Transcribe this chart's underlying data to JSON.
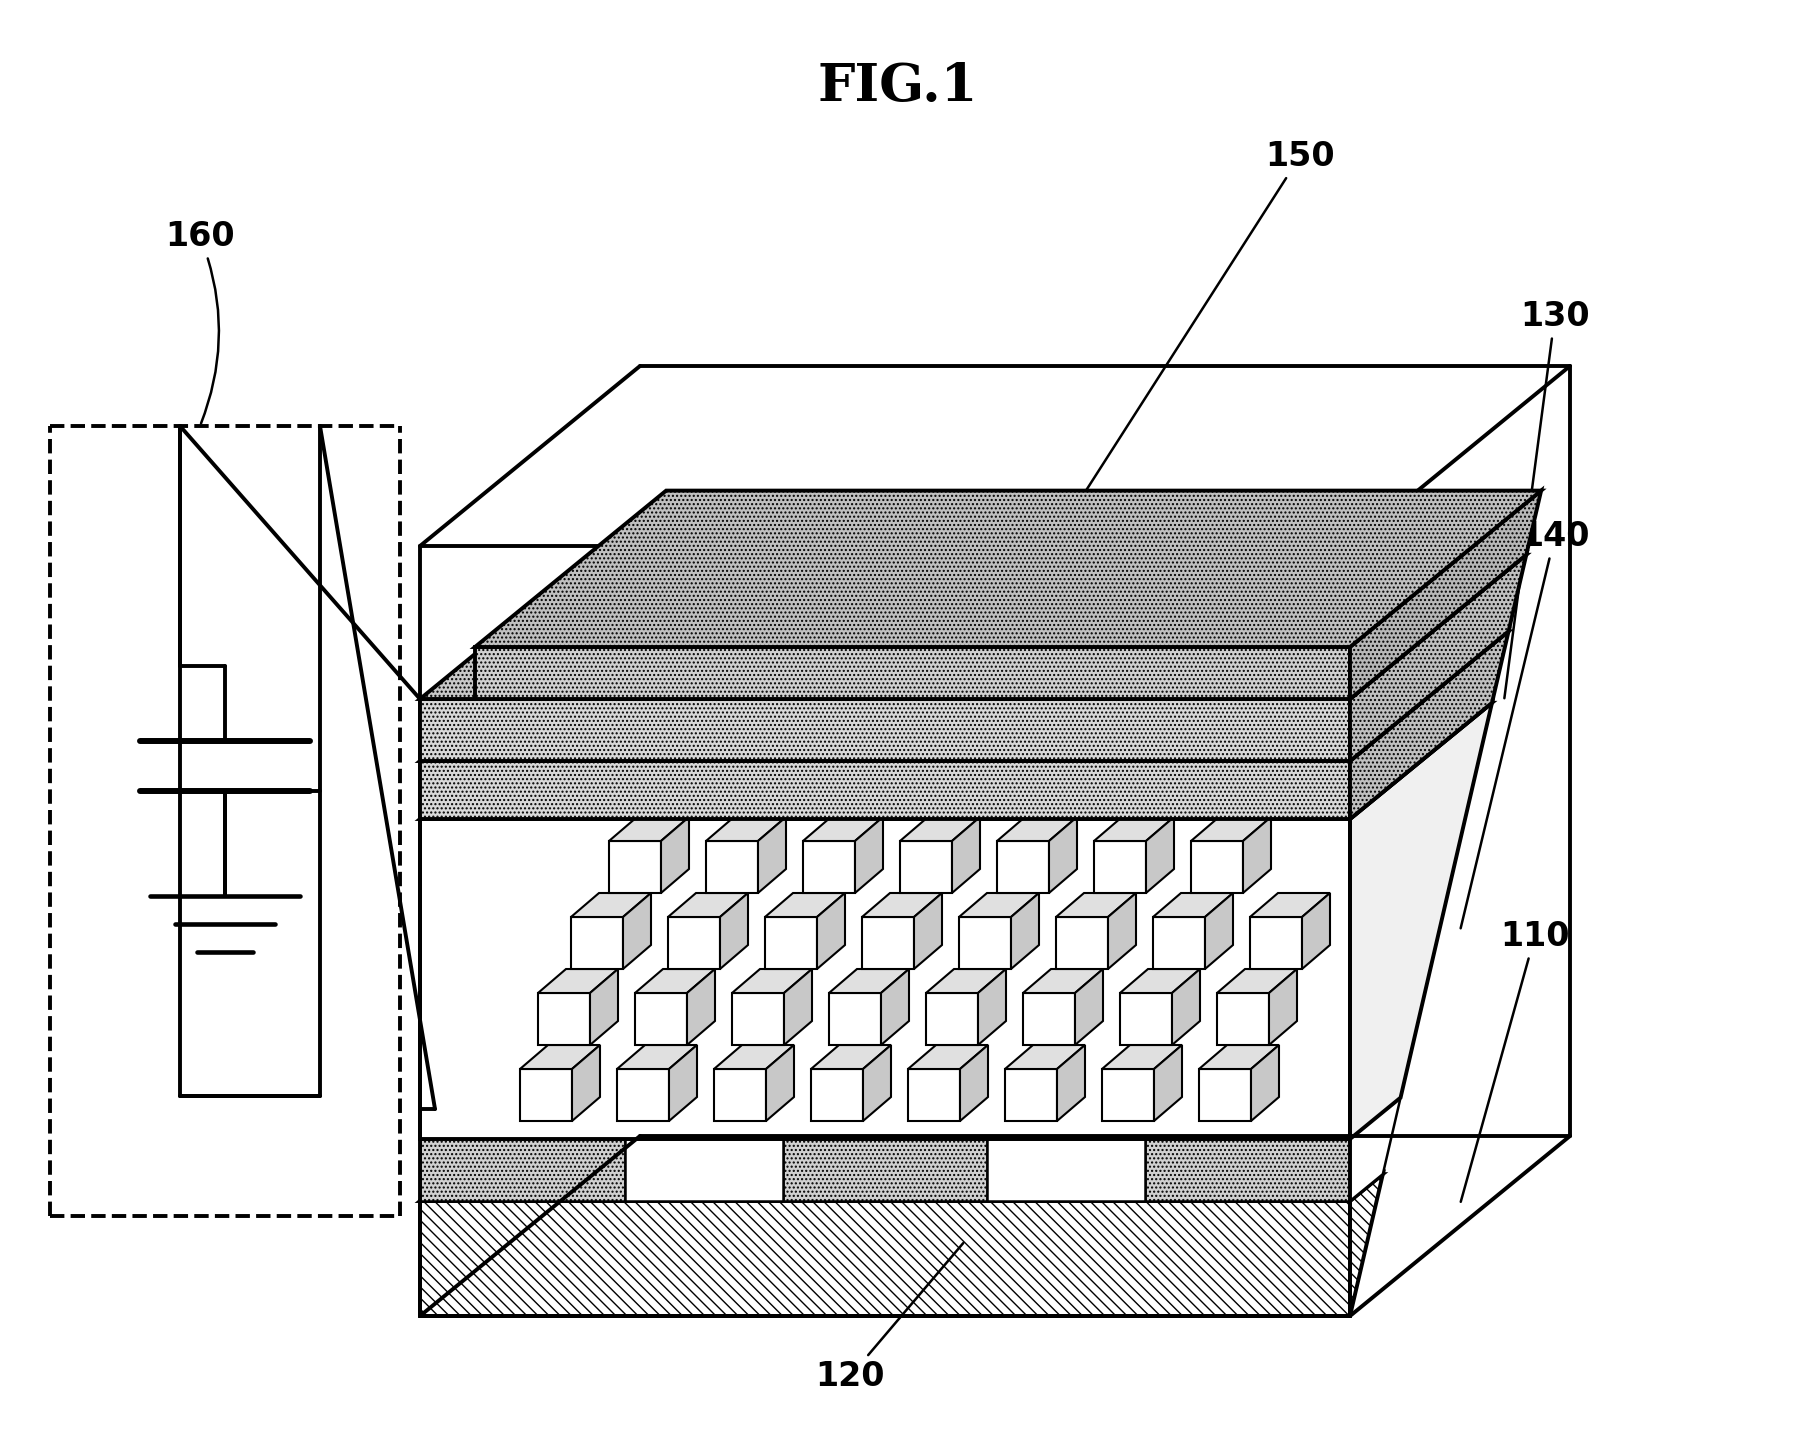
{
  "title": "FIG.1",
  "title_fontsize": 38,
  "bg_color": "#ffffff",
  "line_color": "#000000",
  "lw_main": 2.8,
  "lw_thin": 1.8,
  "label_fontsize": 24,
  "fig_w": 17.96,
  "fig_h": 14.46
}
